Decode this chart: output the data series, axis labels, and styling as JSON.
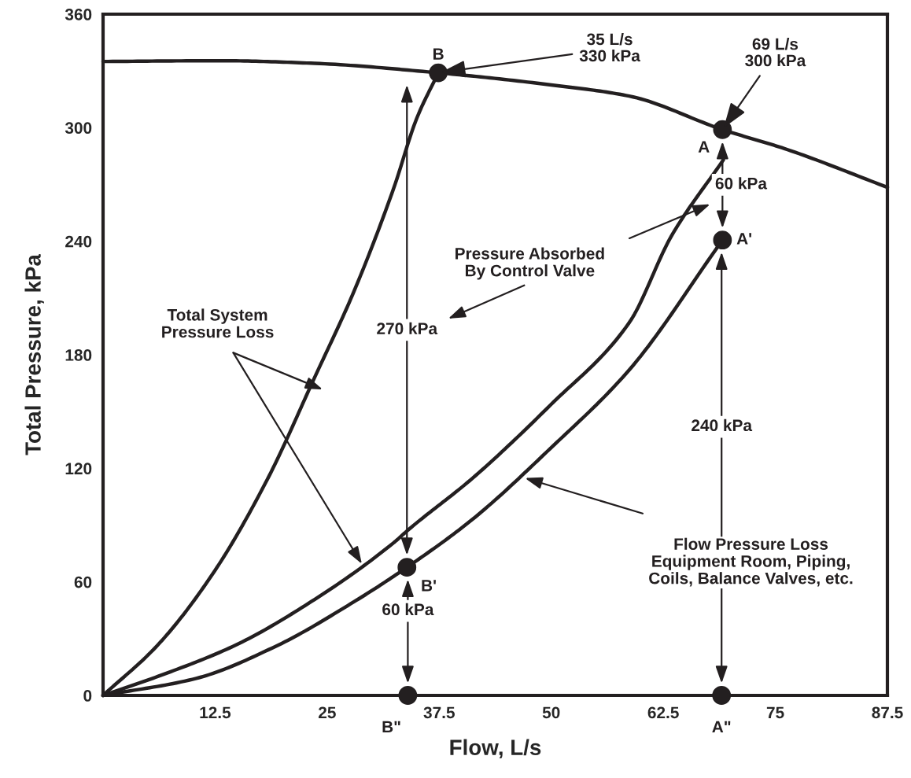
{
  "chart_data": {
    "type": "line",
    "xlabel": "Flow, L/s",
    "ylabel": "Total Pressure, kPa",
    "xlim": [
      0,
      87.5
    ],
    "ylim": [
      0,
      360
    ],
    "xticks": [
      12.5,
      25,
      37.5,
      50,
      62.5,
      75,
      87.5
    ],
    "yticks": [
      0,
      60,
      120,
      180,
      240,
      300,
      360
    ],
    "grid": false,
    "legend": false,
    "series": [
      {
        "color": "#231f20",
        "x": [
          0,
          13.1,
          23.6,
          37.4,
          50,
          58.7,
          69.1,
          76.3,
          87.5
        ],
        "values": [
          335,
          335.4,
          334,
          329,
          322.6,
          316.7,
          299,
          288.5,
          268.5
        ]
      },
      {
        "color": "#231f20",
        "x": [
          0,
          6.1,
          12.2,
          18.3,
          23.6,
          28,
          32.4,
          35,
          37.4
        ],
        "values": [
          0,
          26.6,
          64,
          113.9,
          168,
          213.6,
          267.7,
          305,
          329
        ]
      },
      {
        "color": "#231f20",
        "x": [
          0,
          6.1,
          14.8,
          23.6,
          32.4,
          34.1,
          41.2,
          49.9,
          58.7,
          63.4,
          69.2
        ],
        "values": [
          0,
          10,
          26.6,
          50.7,
          80.6,
          87.7,
          114.7,
          153.4,
          197,
          242.7,
          283
        ]
      },
      {
        "color": "#231f20",
        "x": [
          0,
          10.4,
          19.2,
          28,
          33.9,
          41.2,
          49.9,
          58.7,
          69.1
        ],
        "values": [
          0,
          9,
          25.8,
          49.5,
          67.7,
          93,
          130.5,
          172,
          240.6
        ]
      },
      {
        "type": "scatter",
        "marker": "circle",
        "color": "#231f20",
        "x": [
          37.4,
          69.1,
          69.1,
          33.9,
          34,
          69
        ],
        "values": [
          329,
          299,
          240.6,
          67.7,
          0,
          0
        ]
      }
    ],
    "annotations": [
      {
        "text": "B",
        "x": 37.4,
        "y": 329
      },
      {
        "text": "A",
        "x": 69.1,
        "y": 299
      },
      {
        "text": "A'",
        "x": 69.1,
        "y": 240.6
      },
      {
        "text": "B'",
        "x": 33.9,
        "y": 67.7
      },
      {
        "text": "B\"",
        "x": 34,
        "y": 0
      },
      {
        "text": "A\"",
        "x": 69,
        "y": 0
      },
      {
        "text": "35 L/s\n330 kPa",
        "x": 37.4,
        "y": 329
      },
      {
        "text": "69 L/s\n300 kPa",
        "x": 69.1,
        "y": 299
      },
      "Pressure Absorbed\nBy Control Valve",
      "Total System\nPressure Loss",
      "Flow Pressure Loss\nEquipment Room, Piping,\nCoils, Balance Valves, etc.",
      "270 kPa",
      "240 kPa",
      "60 kPa",
      "60 kPa"
    ]
  }
}
